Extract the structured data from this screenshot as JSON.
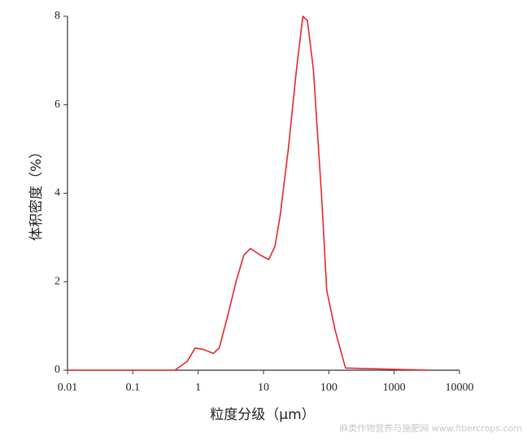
{
  "chart_data": {
    "type": "line",
    "xlabel": "粒度分级（μm）",
    "ylabel": "体积密度（%）",
    "watermark": "麻类作物营养与施肥网 www.fibercrops.com",
    "log_x": true,
    "xlim": [
      0.01,
      10000
    ],
    "xticks": [
      0.01,
      0.1,
      1,
      10,
      100,
      1000,
      10000
    ],
    "ylim": [
      0,
      8
    ],
    "yticks": [
      0,
      2,
      4,
      6,
      8
    ],
    "grid": false,
    "series": [
      {
        "color": "#e8262b",
        "x": [
          0.01,
          0.44,
          0.68,
          0.9,
          1.2,
          1.7,
          2.1,
          2.8,
          3.8,
          5,
          6.3,
          9,
          12,
          15,
          18,
          24,
          32,
          40,
          47,
          58,
          77,
          93,
          125,
          180,
          3500
        ],
        "values": [
          0,
          0,
          0.2,
          0.5,
          0.47,
          0.38,
          0.5,
          1.2,
          2.0,
          2.6,
          2.75,
          2.6,
          2.5,
          2.8,
          3.5,
          5.0,
          6.8,
          8.0,
          7.9,
          6.8,
          4.0,
          1.8,
          0.9,
          0.05,
          0
        ]
      }
    ]
  }
}
